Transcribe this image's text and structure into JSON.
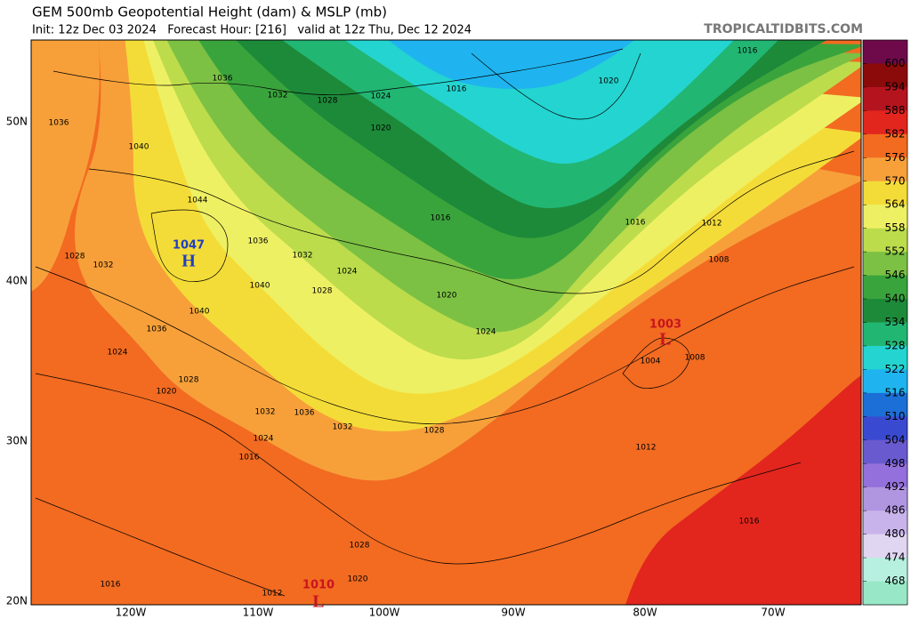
{
  "header": {
    "title": "GEM 500mb Geopotential Height (dam) & MSLP (mb)",
    "subtitle": "Init: 12z Dec 03 2024   Forecast Hour: [216]   valid at 12z Thu, Dec 12 2024",
    "watermark": "TROPICALTIDBITS.COM"
  },
  "colorbar": {
    "levels": [
      600,
      594,
      588,
      582,
      576,
      570,
      564,
      558,
      552,
      546,
      540,
      534,
      528,
      522,
      516,
      510,
      504,
      498,
      492,
      486,
      480,
      474,
      468
    ],
    "colors": [
      "#6e0a4a",
      "#8b0a0a",
      "#b4141e",
      "#e2261e",
      "#f26b21",
      "#f7a03a",
      "#f4dc38",
      "#eef063",
      "#bcdc4c",
      "#7cc143",
      "#3aa43c",
      "#1d8a3a",
      "#22b673",
      "#24d4d0",
      "#1fb4ef",
      "#1c6fd6",
      "#3a4ad0",
      "#6a5ad0",
      "#9370db",
      "#b095e0",
      "#c8b4ea",
      "#e0d6f2",
      "#b8f0e0",
      "#98e8c8"
    ]
  },
  "axes": {
    "lat_labels": [
      "50N",
      "40N",
      "30N",
      "20N"
    ],
    "lon_labels": [
      "120W",
      "110W",
      "100W",
      "90W",
      "80W",
      "70W"
    ]
  },
  "pressure_centers": [
    {
      "label": "H",
      "value": 1047
    },
    {
      "label": "L",
      "value": 1003
    },
    {
      "label": "L",
      "value": 1010
    }
  ],
  "isobar_labels": [
    1036,
    1032,
    1028,
    1024,
    1016,
    1020,
    1016,
    1036,
    1040,
    1020,
    1044,
    1036,
    1032,
    1028,
    1032,
    1024,
    1016,
    1016,
    1012,
    1008,
    1040,
    1028,
    1020,
    1040,
    1036,
    1024,
    1024,
    1004,
    1008,
    1028,
    1020,
    1036,
    1032,
    1032,
    1028,
    1024,
    1016,
    1012,
    1016,
    1028,
    1020,
    1016,
    1012
  ]
}
